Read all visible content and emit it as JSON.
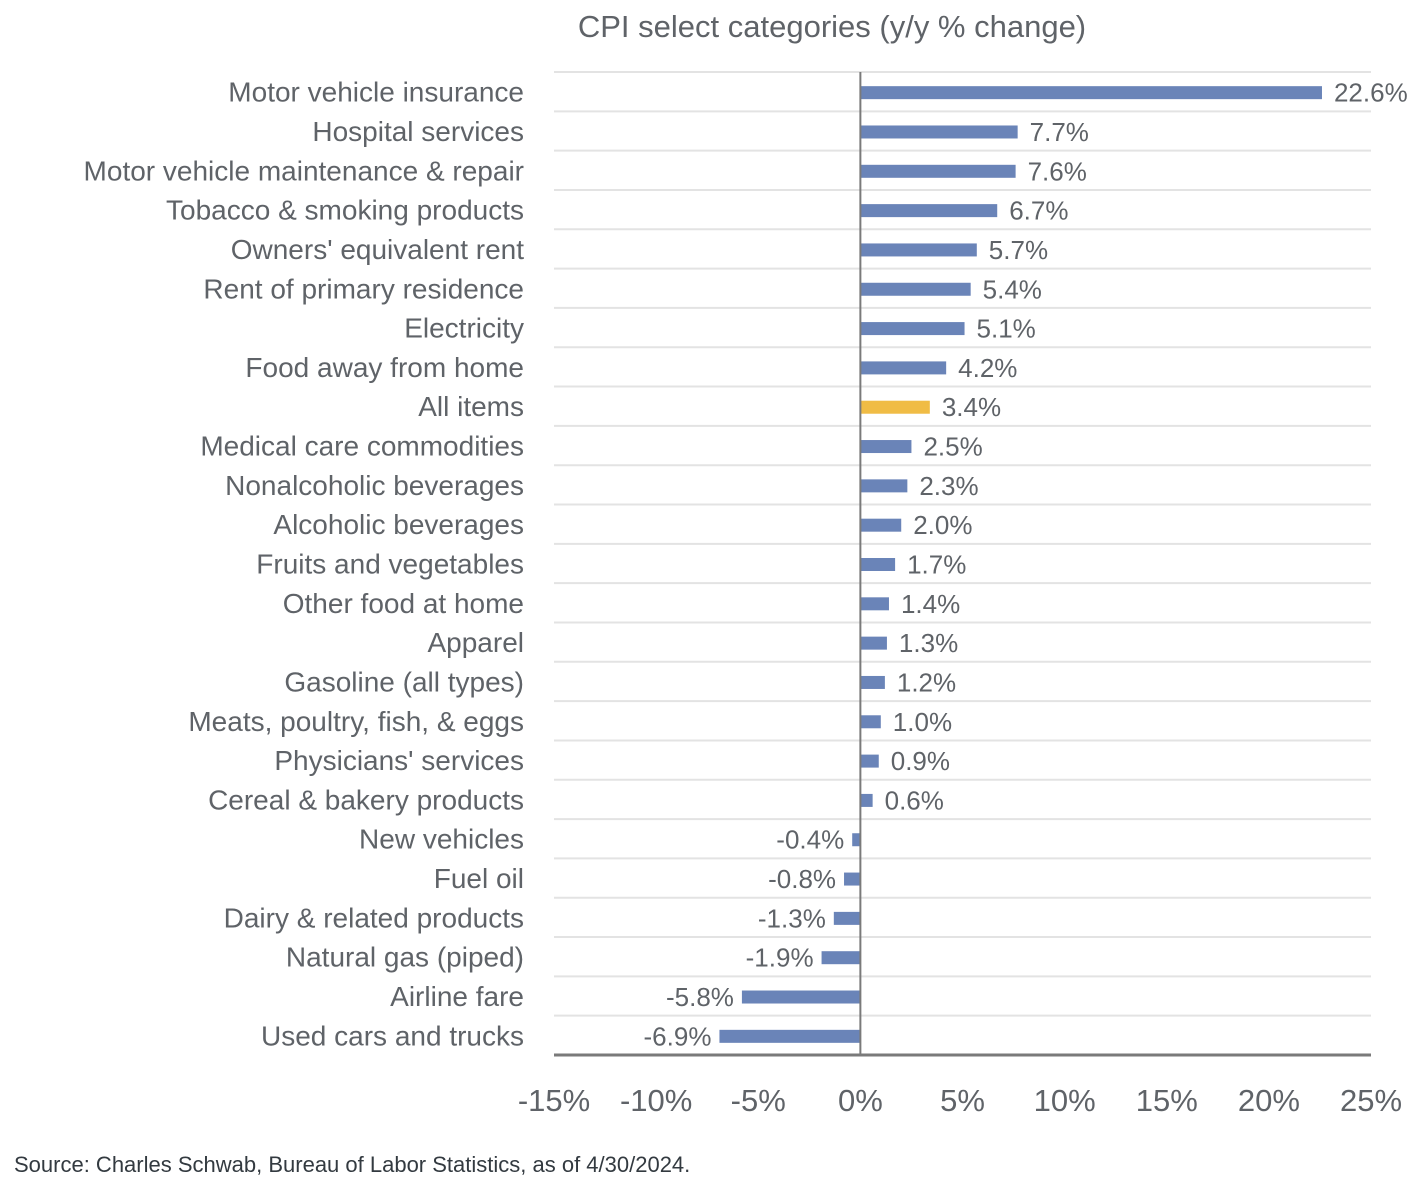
{
  "chart_data": {
    "type": "bar",
    "orientation": "horizontal",
    "title": "CPI select categories (y/y % change)",
    "xlabel": "",
    "ylabel": "",
    "xlim": [
      -15,
      25
    ],
    "grid": true,
    "categories": [
      "Motor vehicle insurance",
      "Hospital services",
      "Motor vehicle maintenance & repair",
      "Tobacco & smoking products",
      "Owners' equivalent rent",
      "Rent of primary residence",
      "Electricity",
      "Food away from home",
      "All items",
      "Medical care commodities",
      "Nonalcoholic beverages",
      "Alcoholic beverages",
      "Fruits and vegetables",
      "Other food at home",
      "Apparel",
      "Gasoline (all types)",
      "Meats, poultry, fish, & eggs",
      "Physicians' services",
      "Cereal & bakery products",
      "New vehicles",
      "Fuel oil",
      "Dairy & related products",
      "Natural gas (piped)",
      "Airline fare",
      "Used cars and trucks"
    ],
    "values": [
      22.6,
      7.7,
      7.6,
      6.7,
      5.7,
      5.4,
      5.1,
      4.2,
      3.4,
      2.5,
      2.3,
      2.0,
      1.7,
      1.4,
      1.3,
      1.2,
      1.0,
      0.9,
      0.6,
      -0.4,
      -0.8,
      -1.3,
      -1.9,
      -5.8,
      -6.9
    ],
    "data_labels": [
      "22.6%",
      "7.7%",
      "7.6%",
      "6.7%",
      "5.7%",
      "5.4%",
      "5.1%",
      "4.2%",
      "3.4%",
      "2.5%",
      "2.3%",
      "2.0%",
      "1.7%",
      "1.4%",
      "1.3%",
      "1.2%",
      "1.0%",
      "0.9%",
      "0.6%",
      "-0.4%",
      "-0.8%",
      "-1.3%",
      "-1.9%",
      "-5.8%",
      "-6.9%"
    ],
    "highlight_category": "All items",
    "x_ticks": [
      -15,
      -10,
      -5,
      0,
      5,
      10,
      15,
      20,
      25
    ],
    "x_tick_labels": [
      "-15%",
      "-10%",
      "-5%",
      "0%",
      "5%",
      "10%",
      "15%",
      "20%",
      "25%"
    ],
    "colors": {
      "bar": "#6a84b8",
      "highlight": "#f0bc45",
      "grid": "#e3e3e3",
      "axis": "#7a7a7a"
    }
  },
  "footer": {
    "source": "Source: Charles Schwab, Bureau of Labor Statistics, as of 4/30/2024."
  }
}
